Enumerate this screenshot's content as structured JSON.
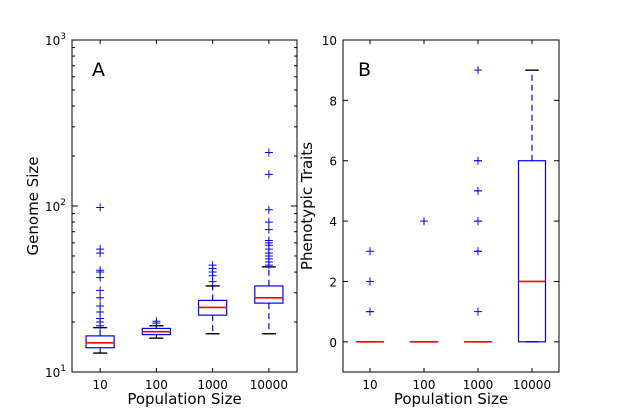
{
  "colors": {
    "box": "#0000ff",
    "median": "#ff0000",
    "flier": "#0000ff",
    "frame": "#000000"
  },
  "chart_data": [
    {
      "type": "box",
      "panel_label": "A",
      "xlabel": "Population Size",
      "ylabel": "Genome Size",
      "yscale": "log",
      "ylim": [
        10,
        1000
      ],
      "categories": [
        "10",
        "100",
        "1000",
        "10000"
      ],
      "ytick_bases": [
        "10",
        "10",
        "10"
      ],
      "ytick_exponents": [
        "1",
        "2",
        "3"
      ],
      "boxes": [
        {
          "category": "10",
          "whisker_low": 13,
          "q1": 14,
          "median": 15,
          "q3": 16.5,
          "whisker_high": 18.5,
          "fliers": [
            19,
            20,
            21,
            23,
            25,
            28,
            31,
            37,
            40,
            41,
            52,
            55,
            98
          ]
        },
        {
          "category": "100",
          "whisker_low": 16,
          "q1": 16.8,
          "median": 17.5,
          "q3": 18.3,
          "whisker_high": 19,
          "fliers": [
            19.7,
            20.2
          ]
        },
        {
          "category": "1000",
          "whisker_low": 17,
          "q1": 22,
          "median": 24.5,
          "q3": 27,
          "whisker_high": 33,
          "fliers": [
            35,
            38,
            40,
            42,
            44
          ]
        },
        {
          "category": "10000",
          "whisker_low": 17,
          "q1": 26,
          "median": 28,
          "q3": 33,
          "whisker_high": 43,
          "fliers": [
            44,
            46,
            48,
            50,
            52,
            55,
            58,
            60,
            62,
            72,
            80,
            95,
            155,
            210
          ]
        }
      ]
    },
    {
      "type": "box",
      "panel_label": "B",
      "xlabel": "Population Size",
      "ylabel": "Phenotypic Traits",
      "yscale": "linear",
      "ylim": [
        -1,
        10
      ],
      "yticks": [
        "0",
        "2",
        "4",
        "6",
        "8",
        "10"
      ],
      "categories": [
        "10",
        "100",
        "1000",
        "10000"
      ],
      "boxes": [
        {
          "category": "10",
          "whisker_low": 0,
          "q1": 0,
          "median": 0,
          "q3": 0,
          "whisker_high": 0,
          "fliers": [
            1,
            1,
            2,
            3
          ]
        },
        {
          "category": "100",
          "whisker_low": 0,
          "q1": 0,
          "median": 0,
          "q3": 0,
          "whisker_high": 0,
          "fliers": [
            4
          ]
        },
        {
          "category": "1000",
          "whisker_low": 0,
          "q1": 0,
          "median": 0,
          "q3": 0,
          "whisker_high": 0,
          "fliers": [
            1,
            3,
            3,
            4,
            4,
            5,
            5,
            6,
            6,
            9
          ]
        },
        {
          "category": "10000",
          "whisker_low": 0,
          "q1": 0,
          "median": 2,
          "q3": 6,
          "whisker_high": 9,
          "fliers": []
        }
      ]
    }
  ]
}
